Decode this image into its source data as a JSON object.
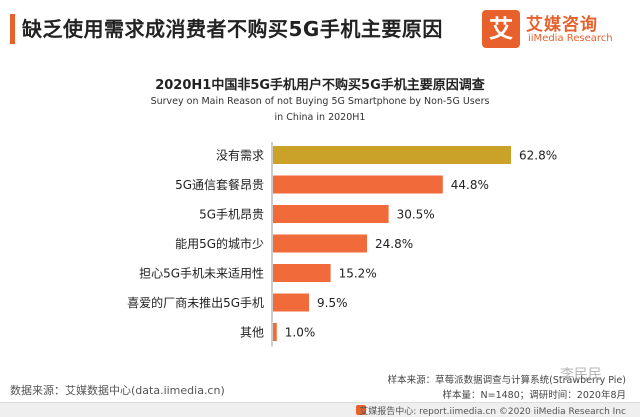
{
  "header": {
    "title": "缺乏使用需求成消费者不购买5G手机主要原因"
  },
  "logo": {
    "mark": "艾",
    "name_cn": "艾媒咨询",
    "name_en": "iiMedia Research"
  },
  "colors": {
    "accent": "#e8612c",
    "highlight_bar": "#c9a227",
    "bar": "#f06a3a"
  },
  "chart_data": {
    "type": "bar",
    "orientation": "horizontal",
    "title": "2020H1中国非5G手机用户不购买5G手机主要原因调查",
    "subtitle_line1": "Survey on Main Reason of not Buying 5G Smartphone by Non-5G Users",
    "subtitle_line2": "in China in 2020H1",
    "categories": [
      "没有需求",
      "5G通信套餐昂贵",
      "5G手机昂贵",
      "能用5G的城市少",
      "担心5G手机未来适用性",
      "喜爱的厂商未推出5G手机",
      "其他"
    ],
    "values": [
      62.8,
      44.8,
      30.5,
      24.8,
      15.2,
      9.5,
      1.0
    ],
    "value_labels": [
      "62.8%",
      "44.8%",
      "30.5%",
      "24.8%",
      "15.2%",
      "9.5%",
      "1.0%"
    ],
    "highlight_index": 0,
    "xlim": [
      0,
      70
    ],
    "grid": false
  },
  "footer": {
    "data_source": "数据来源：艾媒数据中心(data.iimedia.cn)",
    "sample_source": "样本来源：草莓派数据调查与计算系统(Strawberry Pie)",
    "sample_size": "样本量：N=1480；调研时间：2020年8月"
  },
  "bottom_bar": {
    "text": "艾媒报告中心: report.iimedia.cn  ©2020  iiMedia Research  Inc"
  },
  "watermark": "李民民"
}
